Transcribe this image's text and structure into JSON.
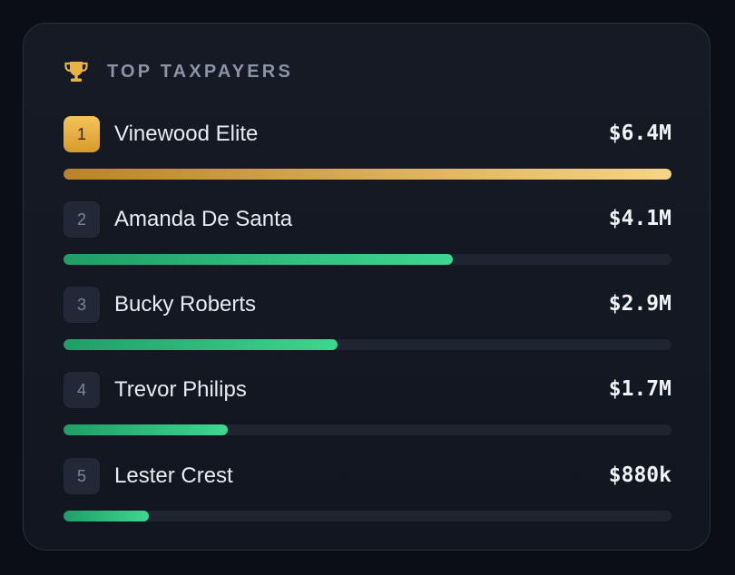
{
  "panel": {
    "title": "TOP TAXPAYERS",
    "icon": "trophy-icon",
    "accent_gold": "#e9b246",
    "accent_green": "#34c97f"
  },
  "taxpayers": [
    {
      "rank": "1",
      "name": "Vinewood Elite",
      "amount": "$6.4M",
      "share": 1.0,
      "highlight": true
    },
    {
      "rank": "2",
      "name": "Amanda De Santa",
      "amount": "$4.1M",
      "share": 0.64,
      "highlight": false
    },
    {
      "rank": "3",
      "name": "Bucky Roberts",
      "amount": "$2.9M",
      "share": 0.45,
      "highlight": false
    },
    {
      "rank": "4",
      "name": "Trevor Philips",
      "amount": "$1.7M",
      "share": 0.27,
      "highlight": false
    },
    {
      "rank": "5",
      "name": "Lester Crest",
      "amount": "$880k",
      "share": 0.14,
      "highlight": false
    }
  ]
}
